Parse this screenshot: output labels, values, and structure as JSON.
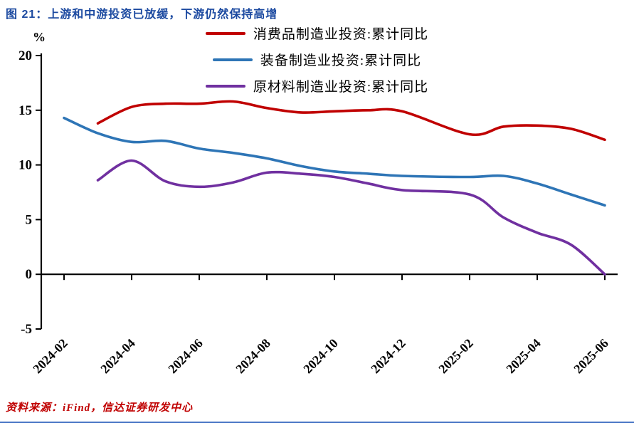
{
  "title": "图 21：上游和中游投资已放缓，下游仍然保持高增",
  "source": "资料来源：iFind，信达证券研发中心",
  "chart_data": {
    "type": "line",
    "title": "图 21：上游和中游投资已放缓，下游仍然保持高增",
    "ylabel": "%",
    "ylim": [
      -5,
      20
    ],
    "yticks": [
      20,
      15,
      10,
      5,
      0,
      -5
    ],
    "x_tick_labels": [
      "2024-02",
      "2024-04",
      "2024-06",
      "2024-08",
      "2024-10",
      "2024-12",
      "2025-02",
      "2025-04",
      "2025-06"
    ],
    "grid": false,
    "smooth": true,
    "legend_position": "top-center",
    "series": [
      {
        "name": "消费品制造业投资:累计同比",
        "color": "#C00000",
        "months": [
          "2024-03",
          "2024-04",
          "2024-05",
          "2024-06",
          "2024-07",
          "2024-08",
          "2024-09",
          "2024-10",
          "2024-11",
          "2024-12",
          "2025-02",
          "2025-03",
          "2025-04",
          "2025-05",
          "2025-06"
        ],
        "values": [
          13.8,
          15.3,
          15.6,
          15.6,
          15.8,
          15.2,
          14.8,
          14.9,
          15.0,
          14.9,
          12.8,
          13.5,
          13.6,
          13.3,
          12.3
        ]
      },
      {
        "name": "装备制造业投资:累计同比",
        "color": "#2E75B6",
        "months": [
          "2024-02",
          "2024-03",
          "2024-04",
          "2024-05",
          "2024-06",
          "2024-07",
          "2024-08",
          "2024-09",
          "2024-10",
          "2024-11",
          "2024-12",
          "2025-02",
          "2025-03",
          "2025-04",
          "2025-05",
          "2025-06"
        ],
        "values": [
          14.3,
          12.9,
          12.1,
          12.2,
          11.5,
          11.1,
          10.6,
          9.9,
          9.4,
          9.2,
          9.0,
          8.9,
          9.0,
          8.3,
          7.3,
          6.3
        ]
      },
      {
        "name": "原材料制造业投资:累计同比",
        "color": "#7030A0",
        "months": [
          "2024-03",
          "2024-04",
          "2024-05",
          "2024-06",
          "2024-07",
          "2024-08",
          "2024-09",
          "2024-10",
          "2024-11",
          "2024-12",
          "2025-02",
          "2025-03",
          "2025-04",
          "2025-05",
          "2025-06"
        ],
        "values": [
          8.6,
          10.4,
          8.5,
          8.0,
          8.4,
          9.3,
          9.2,
          8.9,
          8.3,
          7.7,
          7.3,
          5.2,
          3.8,
          2.7,
          0.0
        ]
      }
    ]
  }
}
